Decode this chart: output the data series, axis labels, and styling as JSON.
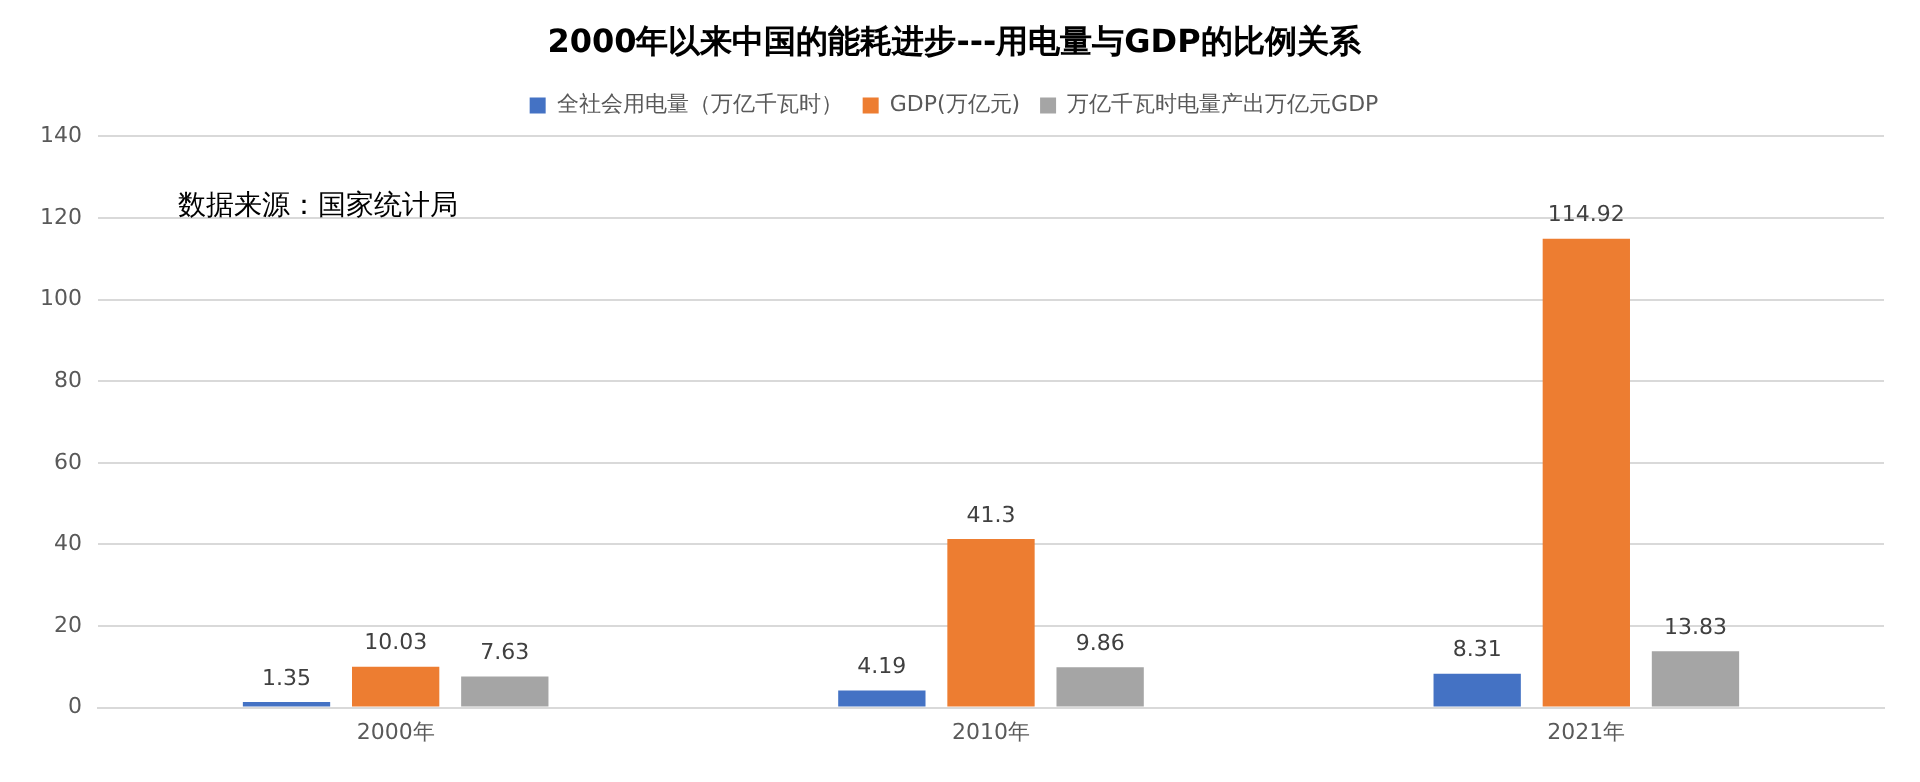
{
  "chart_data": {
    "type": "bar",
    "title": "2000年以来中国的能耗进步---用电量与GDP的比例关系",
    "categories": [
      "2000年",
      "2010年",
      "2021年"
    ],
    "series": [
      {
        "name": "全社会用电量（万亿千瓦时）",
        "color": "#4472c4",
        "values": [
          1.35,
          4.19,
          8.31
        ]
      },
      {
        "name": "GDP(万亿元)",
        "color": "#ed7d31",
        "values": [
          10.03,
          41.3,
          114.92
        ]
      },
      {
        "name": "万亿千瓦时电量产出万亿元GDP",
        "color": "#a5a5a5",
        "values": [
          7.63,
          9.86,
          13.83
        ]
      }
    ],
    "ylim": [
      0,
      140
    ],
    "yticks": [
      0,
      20,
      40,
      60,
      80,
      100,
      120,
      140
    ],
    "grid": "y",
    "legend": "top",
    "data_labels": true,
    "annotations": [
      "数据来源：国家统计局"
    ]
  }
}
